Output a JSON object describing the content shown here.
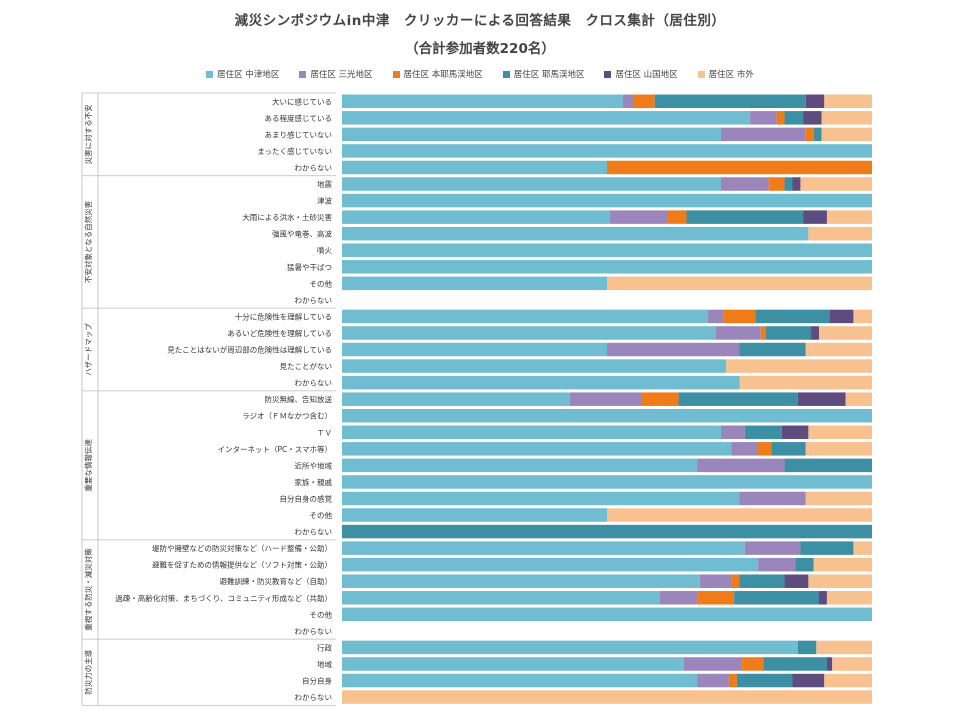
{
  "header": {
    "title": "減災シンポジウムin中津　クリッカーによる回答結果　クロス集計（居住別）",
    "subtitle": "（合計参加者数220名）"
  },
  "chart_data": {
    "type": "bar",
    "stacked": true,
    "orientation": "horizontal",
    "xlim": [
      0,
      100
    ],
    "legend_position": "top",
    "colors": [
      "#70bcd1",
      "#9a86bb",
      "#f07b19",
      "#3d8fa4",
      "#5e4c7e",
      "#f8c190"
    ],
    "series_names": [
      "居住区 中津地区",
      "居住区 三光地区",
      "居住区 本耶馬渓地区",
      "居住区 耶馬渓地区",
      "居住区 山国地区",
      "居住区 市外"
    ],
    "groups": [
      {
        "label": "災害に対する不安",
        "rows": [
          {
            "label": "大いに感じている",
            "values": [
              53,
              2,
              4,
              28.5,
              3.5,
              9
            ]
          },
          {
            "label": "ある程度感じている",
            "values": [
              77,
              5,
              1.5,
              3.5,
              3.5,
              9.5
            ]
          },
          {
            "label": "あまり感じていない",
            "values": [
              71.5,
              16,
              1.5,
              1.5,
              0,
              9.5
            ]
          },
          {
            "label": "まったく感じていない",
            "values": [
              100,
              0,
              0,
              0,
              0,
              0
            ]
          },
          {
            "label": "わからない",
            "values": [
              50,
              0,
              50,
              0,
              0,
              0
            ]
          }
        ]
      },
      {
        "label": "不安対象となる自然災害",
        "rows": [
          {
            "label": "地震",
            "values": [
              71.5,
              9,
              3,
              1.5,
              1.5,
              13.5
            ]
          },
          {
            "label": "津波",
            "values": [
              100,
              0,
              0,
              0,
              0,
              0
            ]
          },
          {
            "label": "大雨による洪水・土砂災害",
            "values": [
              50.5,
              11,
              3.5,
              22,
              4.5,
              8.5
            ]
          },
          {
            "label": "強風や竜巻、高波",
            "values": [
              88,
              0,
              0,
              0,
              0,
              12
            ]
          },
          {
            "label": "噴火",
            "values": [
              100,
              0,
              0,
              0,
              0,
              0
            ]
          },
          {
            "label": "猛暑や干ばつ",
            "values": [
              100,
              0,
              0,
              0,
              0,
              0
            ]
          },
          {
            "label": "その他",
            "values": [
              50,
              0,
              0,
              0,
              0,
              50
            ]
          },
          {
            "label": "わからない",
            "values": [
              0,
              0,
              0,
              0,
              0,
              0
            ]
          }
        ]
      },
      {
        "label": "ハザードマップ",
        "rows": [
          {
            "label": "十分に危険性を理解している",
            "values": [
              69,
              3,
              6,
              14,
              4.5,
              3.5
            ]
          },
          {
            "label": "あるいど危険性を理解している",
            "values": [
              70.5,
              8.5,
              1,
              8.5,
              1.5,
              10
            ]
          },
          {
            "label": "見たことはないが周辺部の危険性は理解している",
            "values": [
              50,
              25,
              0,
              12.5,
              0,
              12.5
            ]
          },
          {
            "label": "見たことがない",
            "values": [
              72.5,
              0,
              0,
              0,
              0,
              27.5
            ]
          },
          {
            "label": "わからない",
            "values": [
              75,
              0,
              0,
              0,
              0,
              25
            ]
          }
        ]
      },
      {
        "label": "重要な情報伝達",
        "rows": [
          {
            "label": "防災無線、告知放送",
            "values": [
              43,
              13.5,
              7,
              22.5,
              9,
              5
            ]
          },
          {
            "label": "ラジオ（ＦＭなかつ含む）",
            "values": [
              100,
              0,
              0,
              0,
              0,
              0
            ]
          },
          {
            "label": "ＴＶ",
            "values": [
              71.5,
              4.5,
              0,
              7,
              5,
              12
            ]
          },
          {
            "label": "インターネット（PC・スマホ等）",
            "values": [
              73.5,
              5,
              2.5,
              6.5,
              0,
              12.5
            ]
          },
          {
            "label": "近所や地域",
            "values": [
              67,
              16.5,
              0,
              16.5,
              0,
              0
            ]
          },
          {
            "label": "家族・親戚",
            "values": [
              100,
              0,
              0,
              0,
              0,
              0
            ]
          },
          {
            "label": "自分自身の感覚",
            "values": [
              75,
              12.5,
              0,
              0,
              0,
              12.5
            ]
          },
          {
            "label": "その他",
            "values": [
              50,
              0,
              0,
              0,
              0,
              50
            ]
          },
          {
            "label": "わからない",
            "values": [
              0,
              0,
              0,
              100,
              0,
              0
            ]
          }
        ]
      },
      {
        "label": "重視する防災・減災対策",
        "rows": [
          {
            "label": "堤防や擁壁などの防災対策など（ハード整備・公助）",
            "values": [
              76,
              10.5,
              0,
              10,
              0,
              3.5
            ]
          },
          {
            "label": "避難を促すための情報提供など（ソフト対策・公助）",
            "values": [
              78.5,
              7,
              0,
              3.5,
              0,
              11
            ]
          },
          {
            "label": "避難訓練・防災教育など（自助）",
            "values": [
              67.5,
              6,
              1.5,
              8.5,
              4.5,
              12
            ]
          },
          {
            "label": "過疎・高齢化対策、まちづくり、コミュニティ形成など（共助）",
            "values": [
              60,
              7,
              7,
              16,
              1.5,
              8.5
            ]
          },
          {
            "label": "その他",
            "values": [
              100,
              0,
              0,
              0,
              0,
              0
            ]
          },
          {
            "label": "わからない",
            "values": [
              0,
              0,
              0,
              0,
              0,
              0
            ]
          }
        ]
      },
      {
        "label": "防災力の主導",
        "rows": [
          {
            "label": "行政",
            "values": [
              86,
              0,
              0,
              3.5,
              0,
              10.5
            ]
          },
          {
            "label": "地域",
            "values": [
              64.5,
              11,
              4,
              12,
              1,
              7.5
            ]
          },
          {
            "label": "自分自身",
            "values": [
              67,
              6,
              1.5,
              10.5,
              6,
              9
            ]
          },
          {
            "label": "わからない",
            "values": [
              0,
              0,
              0,
              0,
              0,
              100
            ]
          }
        ]
      }
    ]
  }
}
